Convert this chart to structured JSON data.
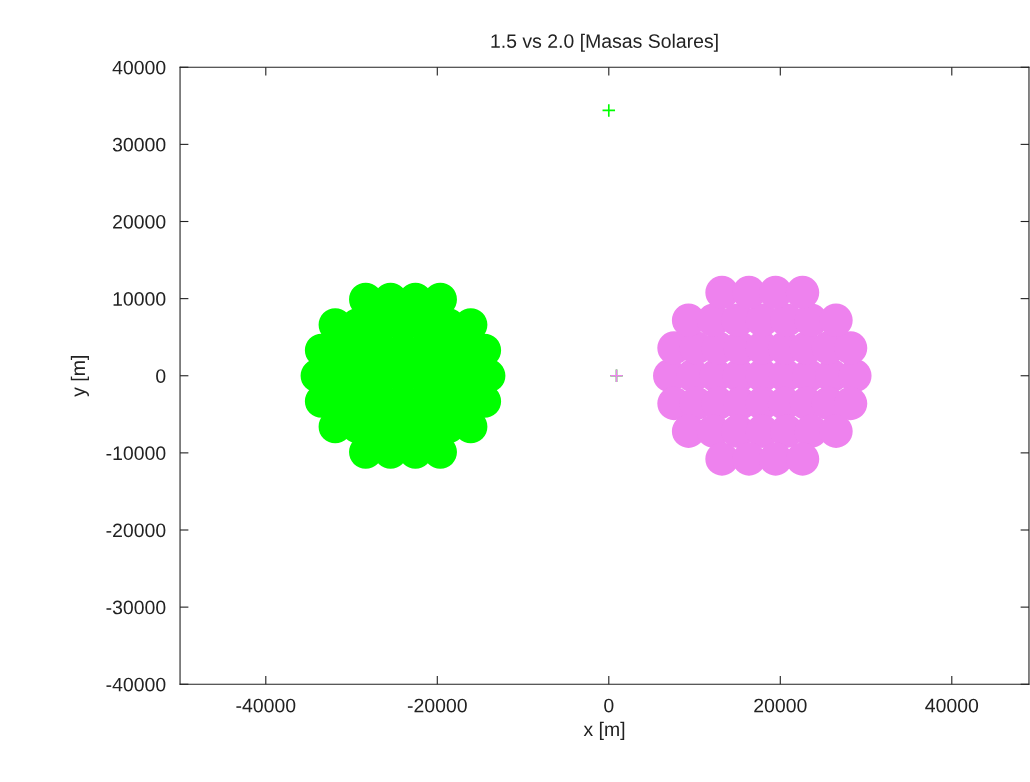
{
  "chart_data": {
    "type": "scatter",
    "title": "1.5 vs 2.0 [Masas Solares]",
    "xlabel": "x [m]",
    "ylabel": "y [m]",
    "xlim": [
      -50000,
      49000
    ],
    "ylim": [
      -40000,
      40000
    ],
    "xticks": [
      -40000,
      -20000,
      0,
      20000,
      40000
    ],
    "yticks": [
      -40000,
      -30000,
      -20000,
      -10000,
      0,
      10000,
      20000,
      30000,
      40000
    ],
    "grid": false,
    "legend": false,
    "series": [
      {
        "color": "#00ff00",
        "marker": "circle",
        "x": [
          -34000,
          -31500,
          -29000,
          -26500,
          -24000,
          -21500,
          -19000,
          -16500,
          -14000,
          -33500,
          -31100,
          -28750,
          -26400,
          -24000,
          -21600,
          -19250,
          -16900,
          -14500,
          -33500,
          -31100,
          -28750,
          -26400,
          -24000,
          -21600,
          -19250,
          -16900,
          -14500,
          -31900,
          -29300,
          -26600,
          -24000,
          -21400,
          -18700,
          -16100,
          -31900,
          -29300,
          -26600,
          -24000,
          -21400,
          -18700,
          -16100,
          -28350,
          -25450,
          -22550,
          -19650,
          -28350,
          -25450,
          -22550,
          -19650
        ],
        "values": [
          0,
          0,
          0,
          0,
          0,
          0,
          0,
          0,
          0,
          3300,
          3300,
          3300,
          3300,
          3300,
          3300,
          3300,
          3300,
          3300,
          -3300,
          -3300,
          -3300,
          -3300,
          -3300,
          -3300,
          -3300,
          -3300,
          -3300,
          6600,
          6600,
          6600,
          6600,
          6600,
          6600,
          6600,
          -6600,
          -6600,
          -6600,
          -6600,
          -6600,
          -6600,
          -6600,
          9900,
          9900,
          9900,
          9900,
          -9900,
          -9900,
          -9900,
          -9900
        ]
      },
      {
        "color": "#ee82ee",
        "marker": "circle",
        "x": [
          7100,
          9800,
          12500,
          15200,
          17900,
          20600,
          23300,
          26000,
          28700,
          7600,
          10200,
          12750,
          15300,
          17900,
          20500,
          23050,
          25600,
          28200,
          7600,
          10200,
          12750,
          15300,
          17900,
          20500,
          23050,
          25600,
          28200,
          9300,
          12200,
          15050,
          17900,
          20750,
          23600,
          26500,
          9300,
          12200,
          15050,
          17900,
          20750,
          23600,
          26500,
          13200,
          16350,
          19450,
          22600,
          13200,
          16350,
          19450,
          22600
        ],
        "values": [
          0,
          0,
          0,
          0,
          0,
          0,
          0,
          0,
          0,
          3600,
          3600,
          3600,
          3600,
          3600,
          3600,
          3600,
          3600,
          3600,
          -3600,
          -3600,
          -3600,
          -3600,
          -3600,
          -3600,
          -3600,
          -3600,
          -3600,
          7200,
          7200,
          7200,
          7200,
          7200,
          7200,
          7200,
          -7200,
          -7200,
          -7200,
          -7200,
          -7200,
          -7200,
          -7200,
          10800,
          10800,
          10800,
          10800,
          -10800,
          -10800,
          -10800,
          -10800
        ]
      },
      {
        "color": "#00ff00",
        "marker": "cross",
        "x": [
          0,
          900
        ],
        "values": [
          34400,
          0
        ]
      },
      {
        "color": "#ee82ee",
        "marker": "cross",
        "x": [
          900
        ],
        "values": [
          0
        ]
      }
    ]
  }
}
